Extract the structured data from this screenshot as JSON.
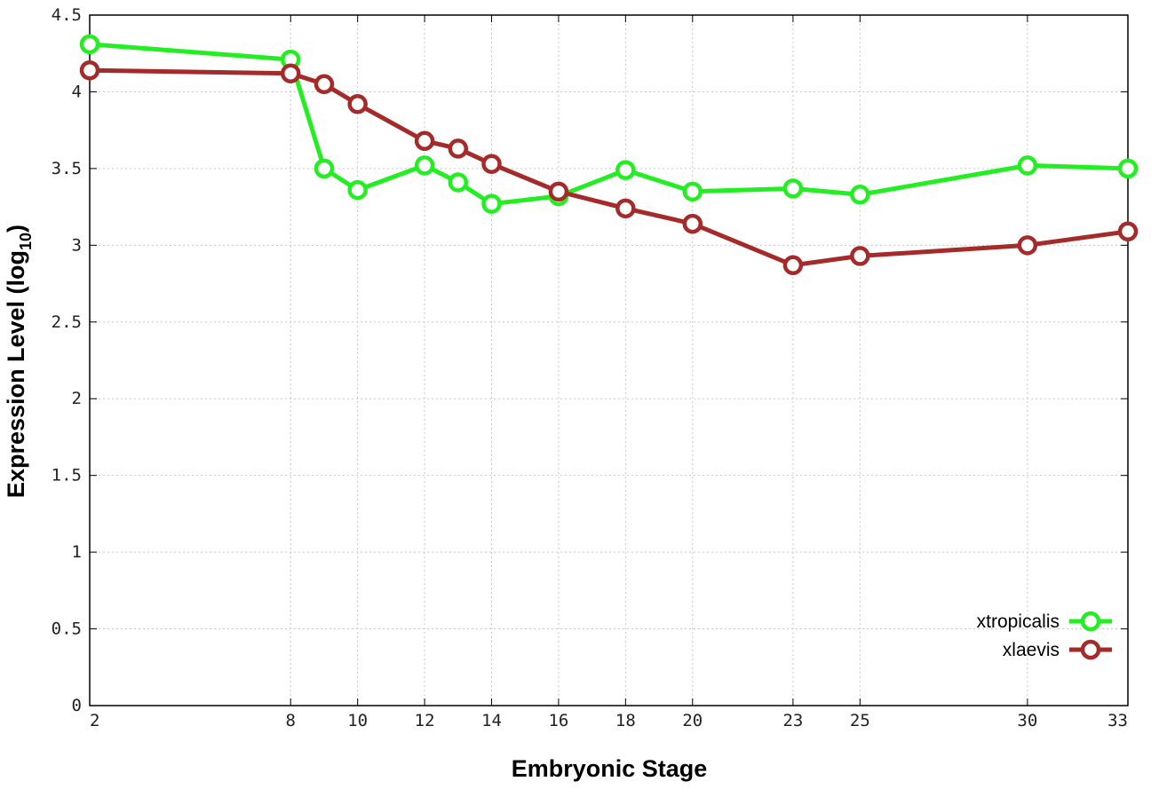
{
  "chart_data": {
    "type": "line",
    "xlabel": "Embryonic Stage",
    "ylabel_main": "Expression Level (log",
    "ylabel_sub": "10",
    "ylabel_close": ")",
    "x_ticks": [
      "2",
      "8",
      "10",
      "12",
      "14",
      "16",
      "18",
      "20",
      "23",
      "25",
      "30",
      "33"
    ],
    "x_tick_values": [
      2,
      8,
      10,
      12,
      14,
      16,
      18,
      20,
      23,
      25,
      30,
      33
    ],
    "y_ticks": [
      "0",
      "0.5",
      "1",
      "1.5",
      "2",
      "2.5",
      "3",
      "3.5",
      "4",
      "4.5"
    ],
    "xlim": [
      2,
      33
    ],
    "ylim": [
      0,
      4.5
    ],
    "grid": true,
    "legend_position": "bottom-right",
    "series": [
      {
        "name": "xtropicalis",
        "color": "#22ee22",
        "x": [
          2,
          8,
          9,
          10,
          12,
          13,
          14,
          16,
          18,
          20,
          23,
          25,
          30,
          33
        ],
        "y": [
          4.31,
          4.21,
          3.5,
          3.36,
          3.52,
          3.41,
          3.27,
          3.32,
          3.49,
          3.35,
          3.37,
          3.33,
          3.52,
          3.5
        ]
      },
      {
        "name": "xlaevis",
        "color": "#a52a2a",
        "x": [
          2,
          8,
          9,
          10,
          12,
          13,
          14,
          16,
          18,
          20,
          23,
          25,
          30,
          33
        ],
        "y": [
          4.14,
          4.12,
          4.05,
          3.92,
          3.68,
          3.63,
          3.53,
          3.35,
          3.24,
          3.14,
          2.87,
          2.93,
          3.0,
          3.09
        ]
      }
    ]
  }
}
